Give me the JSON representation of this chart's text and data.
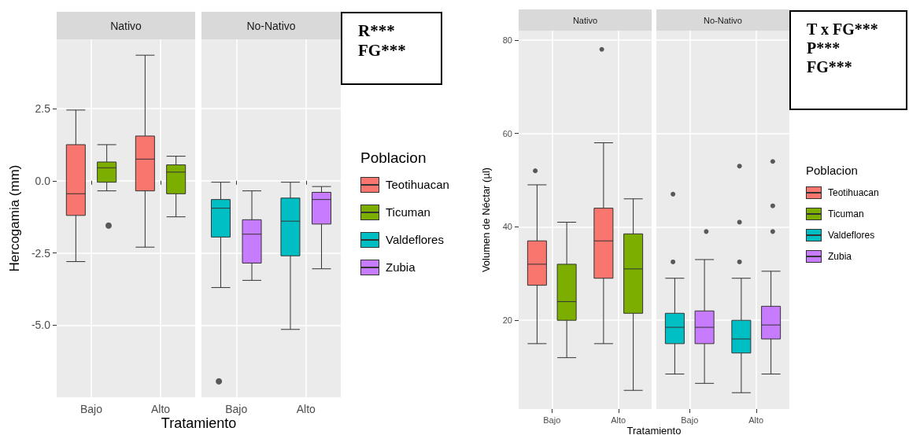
{
  "chart_data": [
    {
      "type": "box",
      "title": "Nativo",
      "ylabel": "Hercogamia (mm)",
      "xlabel": "Tratamiento",
      "categories": [
        "Bajo",
        "Alto"
      ],
      "ylim": [
        -7.5,
        4.9
      ],
      "yticks": [
        {
          "value": -5,
          "label": "-5.0"
        },
        -2.5,
        {
          "value": 0,
          "label": "0.0"
        },
        2.5
      ],
      "grid": true,
      "legend": "right",
      "legend_title": "Poblacion",
      "series": [
        {
          "name": "Teotihuacan",
          "color": "#f8766d",
          "boxes": [
            {
              "low": -2.8,
              "q1": -1.2,
              "median": -0.45,
              "q3": 1.25,
              "high": 2.45
            },
            {
              "low": -2.3,
              "q1": -0.35,
              "median": 0.75,
              "q3": 1.55,
              "high": 4.35
            }
          ]
        },
        {
          "name": "Ticuman",
          "color": "#7cae00",
          "boxes": [
            {
              "low": -0.35,
              "q1": -0.05,
              "median": 0.45,
              "q3": 0.65,
              "high": 1.25,
              "outliers": [
                -1.55
              ]
            },
            {
              "low": -1.25,
              "q1": -0.45,
              "median": 0.3,
              "q3": 0.55,
              "high": 0.85
            }
          ]
        }
      ]
    },
    {
      "type": "box",
      "title": "No-Nativo",
      "categories": [
        "Bajo",
        "Alto"
      ],
      "ylim": [
        -7.5,
        4.9
      ],
      "yticks": [
        -5,
        -2.5,
        0,
        2.5
      ],
      "grid": true,
      "tick_labels": "x",
      "legend": "right",
      "annotations": [
        "R***",
        "FG***"
      ],
      "series": [
        {
          "name": "Valdeflores",
          "color": "#00bfc4",
          "boxes": [
            {
              "low": -3.7,
              "q1": -1.95,
              "median": -0.95,
              "q3": -0.65,
              "high": -0.05,
              "outliers": [
                -6.95
              ]
            },
            {
              "low": -5.15,
              "q1": -2.6,
              "median": -1.4,
              "q3": -0.6,
              "high": -0.05
            }
          ]
        },
        {
          "name": "Zubia",
          "color": "#c77cff",
          "boxes": [
            {
              "low": -3.45,
              "q1": -2.85,
              "median": -1.85,
              "q3": -1.35,
              "high": -0.35
            },
            {
              "low": -3.05,
              "q1": -1.5,
              "median": -0.65,
              "q3": -0.4,
              "high": -0.2
            }
          ]
        }
      ]
    },
    {
      "type": "box",
      "title": "Nativo",
      "ylabel": "Volumen de Néctar (µl)",
      "xlabel": "Tratamiento",
      "categories": [
        "Bajo",
        "Alto"
      ],
      "ylim": [
        1,
        82
      ],
      "yticks": [
        20,
        40,
        60,
        80
      ],
      "grid": true,
      "legend": "right",
      "legend_title": "Poblacion",
      "series": [
        {
          "name": "Teotihuacan",
          "color": "#f8766d",
          "boxes": [
            {
              "low": 15,
              "q1": 27.5,
              "median": 32,
              "q3": 37,
              "high": 49,
              "outliers": [
                52
              ]
            },
            {
              "low": 15,
              "q1": 29,
              "median": 37,
              "q3": 44,
              "high": 58,
              "outliers": [
                78
              ]
            }
          ]
        },
        {
          "name": "Ticuman",
          "color": "#7cae00",
          "boxes": [
            {
              "low": 12,
              "q1": 20,
              "median": 24,
              "q3": 32,
              "high": 41
            },
            {
              "low": 5,
              "q1": 21.5,
              "median": 31,
              "q3": 38.5,
              "high": 46
            }
          ]
        }
      ]
    },
    {
      "type": "box",
      "title": "No-Nativo",
      "categories": [
        "Bajo",
        "Alto"
      ],
      "ylim": [
        1,
        82
      ],
      "yticks": [
        20,
        40,
        60,
        80
      ],
      "grid": true,
      "tick_labels": "x",
      "legend": "right",
      "annotations": [
        "T x FG***",
        "P***",
        "FG***"
      ],
      "series": [
        {
          "name": "Valdeflores",
          "color": "#00bfc4",
          "boxes": [
            {
              "low": 8.5,
              "q1": 15,
              "median": 18.5,
              "q3": 21.5,
              "high": 29,
              "outliers": [
                32.5,
                47
              ]
            },
            {
              "low": 4.5,
              "q1": 13,
              "median": 16,
              "q3": 20,
              "high": 29,
              "outliers": [
                32.5,
                41,
                53
              ]
            }
          ]
        },
        {
          "name": "Zubia",
          "color": "#c77cff",
          "boxes": [
            {
              "low": 6.5,
              "q1": 15,
              "median": 18.5,
              "q3": 22,
              "high": 33,
              "outliers": [
                39
              ]
            },
            {
              "low": 8.5,
              "q1": 16,
              "median": 19,
              "q3": 23,
              "high": 30.5,
              "outliers": [
                39,
                44.5,
                54
              ]
            }
          ]
        }
      ]
    }
  ]
}
